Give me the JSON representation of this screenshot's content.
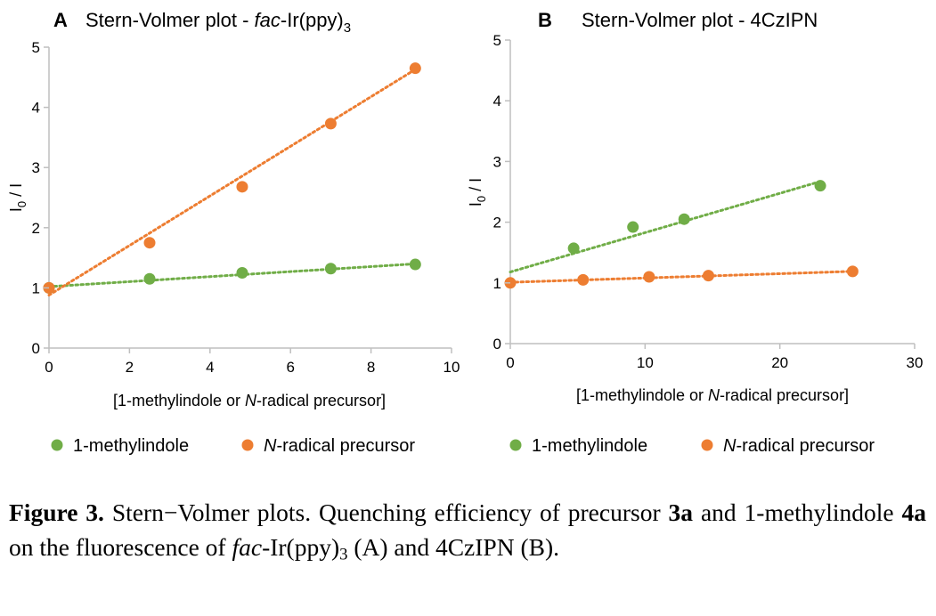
{
  "colors": {
    "green": "#70ad47",
    "orange": "#ed7d31",
    "axis": "#bfbfbf"
  },
  "chart_data": [
    {
      "type": "scatter",
      "panel_label": "A",
      "title_parts": [
        "Stern-Volmer plot - ",
        "fac",
        "-Ir(ppy)",
        "3"
      ],
      "xlabel_parts": [
        "[1-methylindole or ",
        "N",
        "-radical precursor]"
      ],
      "ylabel_parts": [
        "I",
        "0",
        " / I"
      ],
      "xlim": [
        0,
        10
      ],
      "ylim": [
        0,
        5
      ],
      "xticks": [
        0,
        2,
        4,
        6,
        8,
        10
      ],
      "yticks": [
        0,
        1,
        2,
        3,
        4,
        5
      ],
      "series": [
        {
          "name": "1-methylindole",
          "color": "green",
          "x": [
            0,
            2.5,
            4.8,
            7.0,
            9.1
          ],
          "y": [
            1.0,
            1.15,
            1.25,
            1.32,
            1.39
          ],
          "trend": [
            [
              0,
              1.02
            ],
            [
              9.1,
              1.4
            ]
          ]
        },
        {
          "name": "N-radical precursor",
          "color": "orange",
          "x": [
            0,
            2.5,
            4.8,
            7.0,
            9.1
          ],
          "y": [
            1.0,
            1.75,
            2.68,
            3.73,
            4.65
          ],
          "trend": [
            [
              0,
              0.88
            ],
            [
              9.1,
              4.63
            ]
          ]
        }
      ],
      "legend": [
        {
          "color": "green",
          "parts": [
            "1-methylindole"
          ]
        },
        {
          "color": "orange",
          "parts": [
            "N",
            "-radical precursor"
          ]
        }
      ]
    },
    {
      "type": "scatter",
      "panel_label": "B",
      "title_parts": [
        "Stern-Volmer plot - 4CzIPN"
      ],
      "xlabel_parts": [
        "[1-methylindole or ",
        "N",
        "-radical precursor]"
      ],
      "ylabel_parts": [
        "I",
        "0",
        " / I"
      ],
      "xlim": [
        0,
        30
      ],
      "ylim": [
        0,
        5
      ],
      "xticks": [
        0,
        10,
        20,
        30
      ],
      "yticks": [
        0,
        1,
        2,
        3,
        4,
        5
      ],
      "series": [
        {
          "name": "1-methylindole",
          "color": "green",
          "x": [
            4.7,
            9.1,
            12.9,
            23.0
          ],
          "y": [
            1.57,
            1.92,
            2.05,
            2.6
          ],
          "trend": [
            [
              0,
              1.18
            ],
            [
              23.0,
              2.67
            ]
          ]
        },
        {
          "name": "N-radical precursor",
          "color": "orange",
          "x": [
            0,
            5.4,
            10.3,
            14.7,
            25.4
          ],
          "y": [
            1.0,
            1.05,
            1.1,
            1.12,
            1.19
          ],
          "trend": [
            [
              0,
              1.01
            ],
            [
              25.4,
              1.19
            ]
          ]
        }
      ],
      "legend": [
        {
          "color": "green",
          "parts": [
            "1-methylindole"
          ]
        },
        {
          "color": "orange",
          "parts": [
            "N",
            "-radical precursor"
          ]
        }
      ]
    }
  ],
  "caption": {
    "fig_label": "Figure 3.",
    "t1": " Stern−Volmer plots. Quenching efficiency of precursor ",
    "b1": "3a",
    "t2": " and 1-methylindole ",
    "b2": "4a",
    "t3": " on the fluorescence of ",
    "i1": "fac",
    "t4": "-Ir(ppy)",
    "s1": "3",
    "t5": " (A) and 4CzIPN (B)."
  }
}
